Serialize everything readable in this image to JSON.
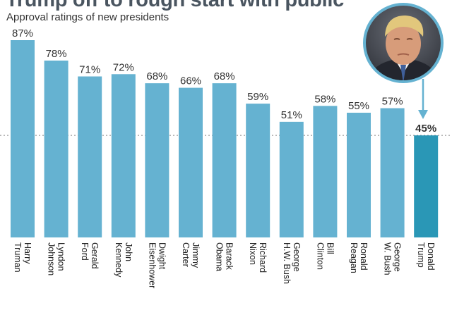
{
  "header": {
    "title": "Trump off to rough start with public",
    "subtitle": "Approval ratings of new presidents"
  },
  "colors": {
    "bar": "#65b2d1",
    "highlight_bar": "#2a97b6",
    "text": "#333333",
    "reference_line": "#888888",
    "photo_ring": "#65b2d1"
  },
  "photo": {
    "icon": "president-portrait-photo",
    "subject": "Donald Trump"
  },
  "chart_data": {
    "type": "bar",
    "title": "Trump off to rough start with public",
    "subtitle": "Approval ratings of new presidents",
    "categories": [
      [
        "Harry",
        "Truman"
      ],
      [
        "Lyndon",
        "Johnson"
      ],
      [
        "Gerald",
        "Ford"
      ],
      [
        "John",
        "Kennedy"
      ],
      [
        "Dwight",
        "Eisenhower"
      ],
      [
        "Jimmy",
        "Carter"
      ],
      [
        "Barack",
        "Obama"
      ],
      [
        "Richard",
        "Nixon"
      ],
      [
        "George",
        "H.W. Bush"
      ],
      [
        "Bill",
        "Clinton"
      ],
      [
        "Ronald",
        "Reagan"
      ],
      [
        "George",
        "W. Bush"
      ],
      [
        "Donald",
        "Trump"
      ]
    ],
    "values": [
      87,
      78,
      71,
      72,
      68,
      66,
      68,
      59,
      51,
      58,
      55,
      57,
      45
    ],
    "value_labels": [
      "87%",
      "78%",
      "71%",
      "72%",
      "68%",
      "66%",
      "68%",
      "59%",
      "51%",
      "58%",
      "55%",
      "57%",
      "45%"
    ],
    "highlight_index": 12,
    "reference_line_value": 45,
    "ylim": [
      0,
      87
    ],
    "grid": false,
    "xlabel": "",
    "ylabel": ""
  }
}
